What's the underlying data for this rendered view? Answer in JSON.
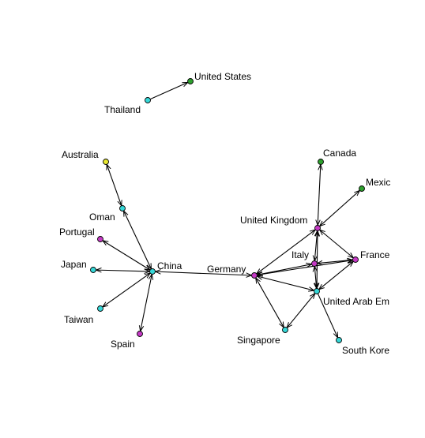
{
  "colors": {
    "cyan": "#36d8d8",
    "magenta": "#c63ac6",
    "green": "#2ca02c",
    "yellow": "#e8e830",
    "edge": "#000000"
  },
  "nodes": [
    {
      "id": "thailand",
      "label": "Thailand",
      "color": "cyan"
    },
    {
      "id": "united_states",
      "label": "United States",
      "color": "green"
    },
    {
      "id": "australia",
      "label": "Australia",
      "color": "yellow"
    },
    {
      "id": "oman",
      "label": "Oman",
      "color": "cyan"
    },
    {
      "id": "portugal",
      "label": "Portugal",
      "color": "magenta"
    },
    {
      "id": "japan",
      "label": "Japan",
      "color": "cyan"
    },
    {
      "id": "taiwan",
      "label": "Taiwan",
      "color": "cyan"
    },
    {
      "id": "spain",
      "label": "Spain",
      "color": "magenta"
    },
    {
      "id": "china",
      "label": "China",
      "color": "cyan"
    },
    {
      "id": "germany",
      "label": "Germany",
      "color": "magenta"
    },
    {
      "id": "singapore",
      "label": "Singapore",
      "color": "cyan"
    },
    {
      "id": "italy",
      "label": "Italy",
      "color": "magenta"
    },
    {
      "id": "united_kingdom",
      "label": "United Kingdom",
      "color": "magenta"
    },
    {
      "id": "canada",
      "label": "Canada",
      "color": "green"
    },
    {
      "id": "mexico",
      "label": "Mexic",
      "color": "green"
    },
    {
      "id": "france",
      "label": "France",
      "color": "magenta"
    },
    {
      "id": "uae",
      "label": "United Arab Em",
      "color": "cyan"
    },
    {
      "id": "south_korea",
      "label": "South Kore",
      "color": "cyan"
    }
  ],
  "edges": [
    {
      "from": "thailand",
      "to": "united_states",
      "arrow_end": true,
      "arrow_start": false
    },
    {
      "from": "australia",
      "to": "oman",
      "arrow_end": true,
      "arrow_start": true
    },
    {
      "from": "oman",
      "to": "china",
      "arrow_end": true,
      "arrow_start": true
    },
    {
      "from": "portugal",
      "to": "china",
      "arrow_end": true,
      "arrow_start": true
    },
    {
      "from": "japan",
      "to": "china",
      "arrow_end": true,
      "arrow_start": true
    },
    {
      "from": "taiwan",
      "to": "china",
      "arrow_end": true,
      "arrow_start": true
    },
    {
      "from": "spain",
      "to": "china",
      "arrow_end": true,
      "arrow_start": true
    },
    {
      "from": "china",
      "to": "germany",
      "arrow_end": true,
      "arrow_start": true
    },
    {
      "from": "germany",
      "to": "singapore",
      "arrow_end": true,
      "arrow_start": true
    },
    {
      "from": "germany",
      "to": "united_kingdom",
      "arrow_end": true,
      "arrow_start": true
    },
    {
      "from": "germany",
      "to": "italy",
      "arrow_end": true,
      "arrow_start": true
    },
    {
      "from": "germany",
      "to": "france",
      "arrow_end": true,
      "arrow_start": true
    },
    {
      "from": "germany",
      "to": "uae",
      "arrow_end": true,
      "arrow_start": true
    },
    {
      "from": "singapore",
      "to": "uae",
      "arrow_end": true,
      "arrow_start": true
    },
    {
      "from": "italy",
      "to": "united_kingdom",
      "arrow_end": true,
      "arrow_start": true
    },
    {
      "from": "italy",
      "to": "france",
      "arrow_end": true,
      "arrow_start": true
    },
    {
      "from": "italy",
      "to": "uae",
      "arrow_end": true,
      "arrow_start": true
    },
    {
      "from": "united_kingdom",
      "to": "canada",
      "arrow_end": true,
      "arrow_start": true
    },
    {
      "from": "united_kingdom",
      "to": "mexico",
      "arrow_end": true,
      "arrow_start": true
    },
    {
      "from": "united_kingdom",
      "to": "france",
      "arrow_end": true,
      "arrow_start": true
    },
    {
      "from": "united_kingdom",
      "to": "uae",
      "arrow_end": true,
      "arrow_start": true
    },
    {
      "from": "france",
      "to": "uae",
      "arrow_end": true,
      "arrow_start": true
    },
    {
      "from": "uae",
      "to": "south_korea",
      "arrow_end": true,
      "arrow_start": false
    }
  ]
}
